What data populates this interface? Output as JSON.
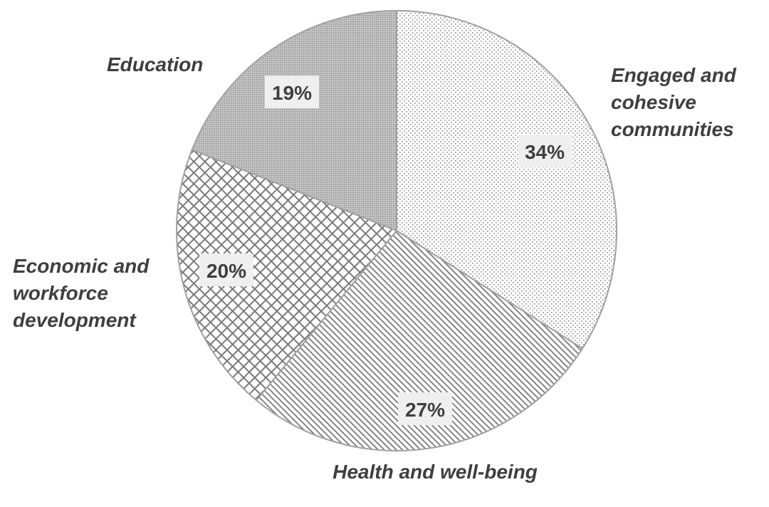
{
  "chart_data": {
    "type": "pie",
    "title": "",
    "start_angle": "12 o'clock",
    "direction": "clockwise",
    "slices": [
      {
        "label": "Engaged and cohesive communities",
        "label_lines": [
          "Engaged and",
          "cohesive",
          "communities"
        ],
        "value": 34,
        "data_label": "34%",
        "pattern": "fine-dots"
      },
      {
        "label": "Health and well-being",
        "label_lines": [
          "Health and well-being"
        ],
        "value": 27,
        "data_label": "27%",
        "pattern": "diagonal-lines"
      },
      {
        "label": "Economic and workforce development",
        "label_lines": [
          "Economic and",
          "workforce",
          "development"
        ],
        "value": 20,
        "data_label": "20%",
        "pattern": "crosshatch"
      },
      {
        "label": "Education",
        "label_lines": [
          "Education"
        ],
        "value": 19,
        "data_label": "19%",
        "pattern": "dense-dark-dots"
      }
    ],
    "colors": {
      "text": "#3f3f3f",
      "pattern": "#7a7a7a",
      "label_box": "#efefef",
      "edge": "#a0a0a0"
    }
  }
}
